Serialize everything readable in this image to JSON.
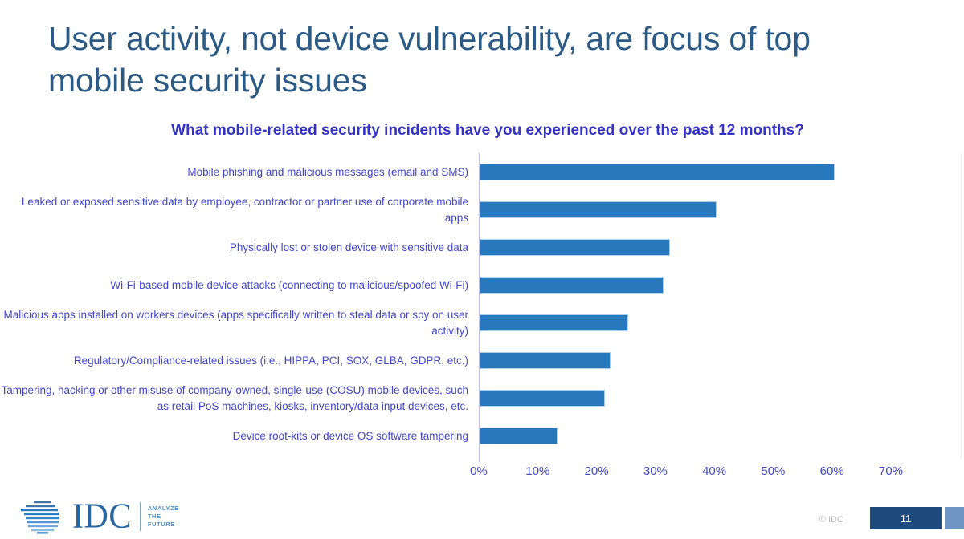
{
  "slide": {
    "title": "User activity, not device vulnerability, are focus of top mobile security issues"
  },
  "chart_data": {
    "type": "bar",
    "orientation": "horizontal",
    "title": "What mobile-related security incidents have you experienced over the past 12 months?",
    "categories": [
      "Mobile phishing and malicious messages (email and SMS)",
      "Leaked or exposed sensitive data  by employee, contractor or partner use of corporate mobile apps",
      "Physically lost or stolen device with sensitive data",
      "Wi-Fi-based mobile device attacks (connecting to malicious/spoofed Wi-Fi)",
      "Malicious apps installed on workers devices (apps specifically written to steal data or spy on user activity)",
      "Regulatory/Compliance-related issues (i.e., HIPPA, PCI, SOX, GLBA, GDPR, etc.)",
      "Tampering, hacking or other misuse of company-owned, single-use (COSU) mobile devices, such as retail PoS machines, kiosks, inventory/data input devices, etc.",
      "Device root-kits or device OS software tampering"
    ],
    "values": [
      60,
      40,
      32,
      31,
      25,
      22,
      21,
      13
    ],
    "unit": "%",
    "xlim": [
      0,
      70
    ],
    "x_ticks": [
      "0%",
      "10%",
      "20%",
      "30%",
      "40%",
      "50%",
      "60%",
      "70%"
    ],
    "grid": false,
    "legend": false,
    "colors": {
      "bar": "#2878be",
      "bar_border": "#aed0ec",
      "axis_line": "#b9bfe6",
      "category_label": "#4347c6",
      "tick_label": "#4347c6",
      "chart_title": "#3332c4"
    }
  },
  "footer": {
    "logo": {
      "brand": "IDC",
      "tagline_lines": [
        "ANALYZE",
        "THE",
        "FUTURE"
      ]
    },
    "copyright": "© IDC",
    "page_number": "11",
    "colors": {
      "page_box": "#1f4a7d",
      "corner_square": "#7195c2"
    }
  },
  "colors": {
    "title": "#2b5a85",
    "background": "#ffffff"
  }
}
